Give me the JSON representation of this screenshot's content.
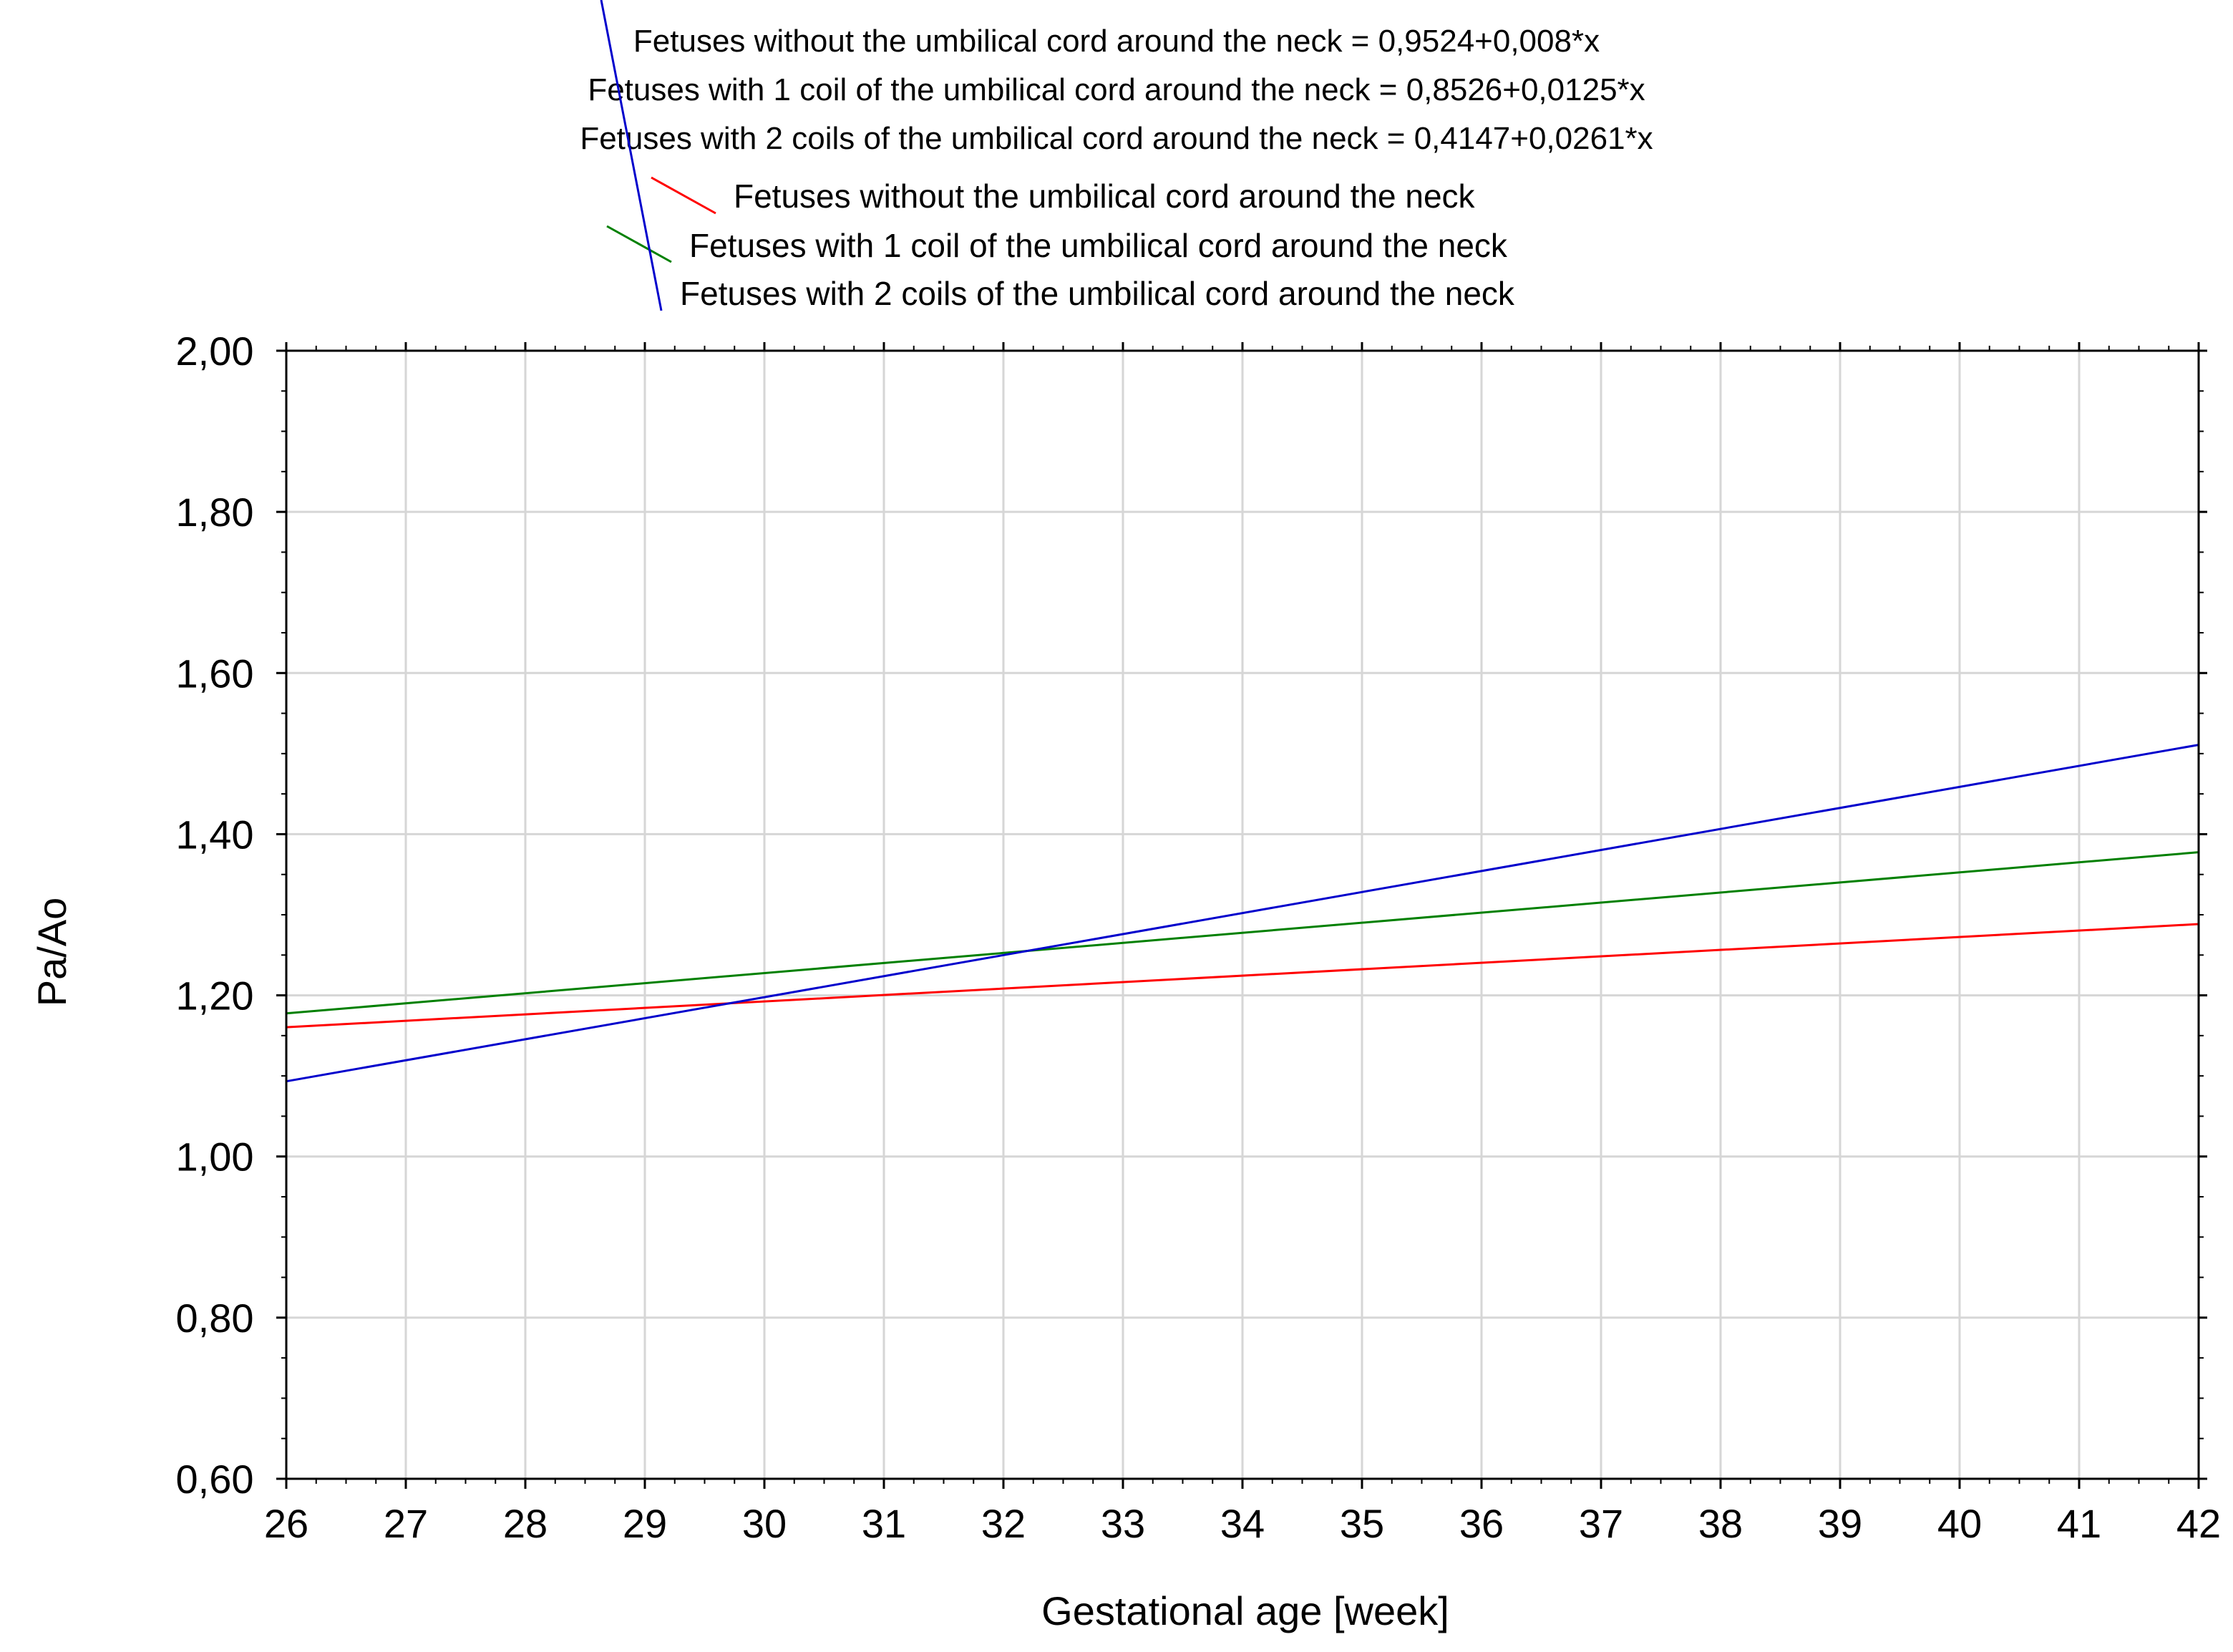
{
  "chart_data": {
    "type": "line",
    "title_lines": [
      "Fetuses without the umbilical cord around the neck = 0,9524+0,008*x",
      "Fetuses with 1 coil of the umbilical cord around the neck = 0,8526+0,0125*x",
      "Fetuses with 2 coils of the umbilical cord around the neck = 0,4147+0,0261*x"
    ],
    "xlabel": "Gestational age [week]",
    "ylabel": "Pa/Ao",
    "xlim": [
      26,
      42
    ],
    "ylim": [
      0.6,
      2.0
    ],
    "x_ticks": [
      "26",
      "27",
      "28",
      "29",
      "30",
      "31",
      "32",
      "33",
      "34",
      "35",
      "36",
      "37",
      "38",
      "39",
      "40",
      "41",
      "42"
    ],
    "y_ticks": [
      "0,60",
      "0,80",
      "1,00",
      "1,20",
      "1,40",
      "1,60",
      "1,80",
      "2,00"
    ],
    "y_tick_values": [
      0.6,
      0.8,
      1.0,
      1.2,
      1.4,
      1.6,
      1.8,
      2.0
    ],
    "grid": true,
    "legend_position": "top",
    "series": [
      {
        "name": "Fetuses without the umbilical cord around the neck",
        "color": "#ff0000",
        "intercept": 0.9524,
        "slope": 0.008,
        "x": [
          26,
          42
        ],
        "y": [
          1.1604,
          1.2884
        ]
      },
      {
        "name": "Fetuses with 1 coil of the umbilical cord around the neck",
        "color": "#008000",
        "intercept": 0.8526,
        "slope": 0.0125,
        "x": [
          26,
          42
        ],
        "y": [
          1.1776,
          1.3776
        ]
      },
      {
        "name": "Fetuses with 2 coils of the umbilical cord around the neck",
        "color": "#0000cc",
        "intercept": 0.4147,
        "slope": 0.0261,
        "x": [
          26,
          42
        ],
        "y": [
          1.0933,
          1.5109
        ]
      }
    ]
  }
}
